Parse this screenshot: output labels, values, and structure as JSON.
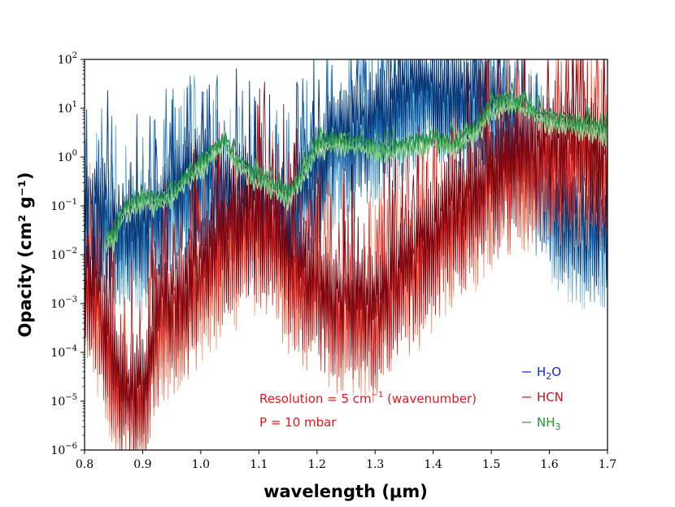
{
  "chart_data": {
    "type": "line",
    "xlabel": "wavelength (μm)",
    "ylabel": "Opacity (cm² g⁻¹)",
    "xlim": [
      0.8,
      1.7
    ],
    "ylim": [
      1e-06,
      100
    ],
    "yscale": "log",
    "x_ticks": [
      "0.8",
      "0.9",
      "1.0",
      "1.1",
      "1.2",
      "1.3",
      "1.4",
      "1.5",
      "1.6",
      "1.7"
    ],
    "y_ticks": [
      {
        "base": "10",
        "exp": "-6"
      },
      {
        "base": "10",
        "exp": "-5"
      },
      {
        "base": "10",
        "exp": "-4"
      },
      {
        "base": "10",
        "exp": "-3"
      },
      {
        "base": "10",
        "exp": "-2"
      },
      {
        "base": "10",
        "exp": "-1"
      },
      {
        "base": "10",
        "exp": "0"
      },
      {
        "base": "10",
        "exp": "1"
      },
      {
        "base": "10",
        "exp": "2"
      }
    ],
    "legend_position": "lower-right",
    "legend": [
      {
        "name": "H2O",
        "label_main": "H",
        "label_sub": "2",
        "label_tail": "O",
        "color": "#0a2bd6"
      },
      {
        "name": "HCN",
        "label_main": "HCN",
        "label_sub": "",
        "label_tail": "",
        "color": "#c8141c"
      },
      {
        "name": "NH3",
        "label_main": "NH",
        "label_sub": "3",
        "label_tail": "",
        "color": "#1e9a2e"
      }
    ],
    "annotations": {
      "resolution_main": "Resolution = 5 cm",
      "resolution_sup": "−1",
      "resolution_tail": " (wavenumber)",
      "pressure": "P = 10 mbar"
    },
    "series": [
      {
        "name": "H2O",
        "palette": [
          "#9ecae1",
          "#6baed6",
          "#4292c6",
          "#2171b5",
          "#08519c",
          "#08306b"
        ],
        "envelope_wavelength_um": [
          0.8,
          0.83,
          0.86,
          0.9,
          0.93,
          0.96,
          1.0,
          1.04,
          1.08,
          1.12,
          1.15,
          1.18,
          1.22,
          1.26,
          1.3,
          1.34,
          1.38,
          1.42,
          1.46,
          1.5,
          1.54,
          1.58,
          1.62,
          1.66,
          1.7
        ],
        "envelope_log10_opacity": [
          -1.2,
          -1.0,
          -1.5,
          -1.4,
          -1.0,
          -0.6,
          -0.3,
          -0.5,
          -0.8,
          -1.0,
          -1.3,
          -0.6,
          0.3,
          0.6,
          0.8,
          1.2,
          1.5,
          1.4,
          1.2,
          1.3,
          0.8,
          -0.4,
          -1.0,
          -1.3,
          -1.3
        ]
      },
      {
        "name": "HCN",
        "palette": [
          "#fc9272",
          "#fb6a4a",
          "#ef3b2c",
          "#cb181d",
          "#a50f15",
          "#67000d"
        ],
        "envelope_wavelength_um": [
          0.8,
          0.83,
          0.86,
          0.9,
          0.93,
          0.96,
          1.0,
          1.04,
          1.08,
          1.12,
          1.15,
          1.18,
          1.22,
          1.26,
          1.3,
          1.34,
          1.38,
          1.42,
          1.46,
          1.5,
          1.54,
          1.58,
          1.62,
          1.66,
          1.7
        ],
        "envelope_log10_opacity": [
          -2.2,
          -3.0,
          -4.6,
          -4.8,
          -3.0,
          -2.8,
          -2.2,
          -1.6,
          -1.3,
          -1.2,
          -2.0,
          -2.4,
          -2.8,
          -2.9,
          -3.0,
          -2.3,
          -1.8,
          -1.2,
          -0.8,
          -0.3,
          0.0,
          0.2,
          0.3,
          0.3,
          0.0
        ]
      },
      {
        "name": "NH3",
        "palette": [
          "#a1d99b",
          "#74c476",
          "#41ab5d",
          "#238b45"
        ],
        "envelope_wavelength_um": [
          0.835,
          0.85,
          0.87,
          0.9,
          0.93,
          0.96,
          0.99,
          1.02,
          1.04,
          1.06,
          1.09,
          1.12,
          1.15,
          1.18,
          1.2,
          1.24,
          1.28,
          1.32,
          1.36,
          1.4,
          1.44,
          1.48,
          1.5,
          1.54,
          1.58,
          1.62,
          1.66,
          1.7
        ],
        "envelope_log10_opacity": [
          -1.7,
          -1.6,
          -1.0,
          -0.8,
          -0.9,
          -0.6,
          -0.2,
          0.1,
          0.4,
          0.0,
          -0.3,
          -0.5,
          -0.7,
          -0.2,
          0.3,
          0.4,
          0.3,
          0.2,
          0.3,
          0.4,
          0.3,
          0.7,
          1.1,
          1.2,
          0.9,
          0.8,
          0.7,
          0.6
        ]
      }
    ]
  }
}
